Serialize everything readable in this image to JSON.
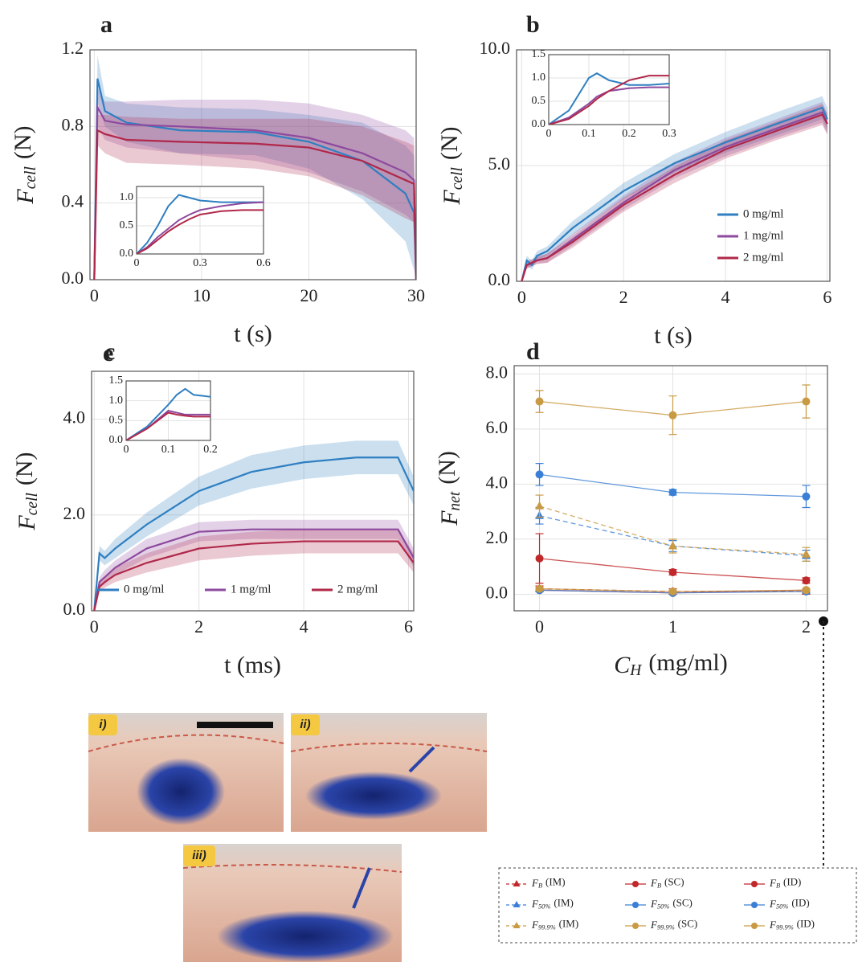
{
  "chart_data": [
    {
      "type": "line",
      "title": "a",
      "xlabel": "t (s)",
      "ylabel": {
        "symbol": "F",
        "subscript": "cell",
        "unit": "(N)"
      },
      "x": [
        0,
        0.3,
        1,
        3,
        8,
        15,
        20,
        25,
        29,
        29.8,
        30
      ],
      "xlim": [
        -0.4,
        30
      ],
      "ylim": [
        0,
        1.2
      ],
      "xticks": [
        0,
        10,
        20,
        30
      ],
      "yticks": [
        {
          "value": 0,
          "label": "0.0"
        },
        0.4,
        0.8,
        1.2
      ],
      "grid": true,
      "series": [
        {
          "color": "#2f7fc1",
          "values": [
            0,
            1.05,
            0.88,
            0.82,
            0.78,
            0.77,
            0.72,
            0.62,
            0.45,
            0.35,
            0
          ],
          "band": [
            0,
            0.12,
            0.08,
            0.1,
            0.12,
            0.12,
            0.14,
            0.2,
            0.25,
            0.3,
            0
          ]
        },
        {
          "color": "#8e4a9e",
          "values": [
            0,
            0.9,
            0.83,
            0.81,
            0.8,
            0.78,
            0.74,
            0.66,
            0.56,
            0.52,
            0
          ],
          "band": [
            0,
            0.1,
            0.1,
            0.12,
            0.14,
            0.16,
            0.18,
            0.2,
            0.22,
            0.22,
            0
          ]
        },
        {
          "color": "#b0284a",
          "values": [
            0,
            0.78,
            0.76,
            0.73,
            0.72,
            0.71,
            0.69,
            0.62,
            0.52,
            0.5,
            0
          ],
          "band": [
            0,
            0.08,
            0.1,
            0.12,
            0.12,
            0.13,
            0.15,
            0.18,
            0.2,
            0.2,
            0
          ]
        }
      ],
      "inset": {
        "x": [
          0,
          0.05,
          0.1,
          0.15,
          0.2,
          0.25,
          0.3,
          0.4,
          0.5,
          0.6
        ],
        "xlim": [
          0,
          0.6
        ],
        "ylim": [
          0,
          1.2
        ],
        "xticks": [
          0,
          0.3,
          0.6
        ],
        "yticks": [
          {
            "value": 0,
            "label": "0.0"
          },
          0.5,
          {
            "value": 1,
            "label": "1.0"
          }
        ],
        "series": [
          {
            "color": "#2f7fc1",
            "values": [
              0,
              0.2,
              0.5,
              0.85,
              1.05,
              1.0,
              0.95,
              0.92,
              0.92,
              0.92
            ]
          },
          {
            "color": "#8e4a9e",
            "values": [
              0,
              0.12,
              0.3,
              0.45,
              0.6,
              0.7,
              0.78,
              0.85,
              0.9,
              0.92
            ]
          },
          {
            "color": "#b0284a",
            "values": [
              0,
              0.1,
              0.25,
              0.4,
              0.52,
              0.62,
              0.7,
              0.76,
              0.78,
              0.78
            ]
          }
        ]
      }
    },
    {
      "type": "line",
      "title": "b",
      "xlabel": "t (s)",
      "ylabel": {
        "symbol": "F",
        "subscript": "cell",
        "unit": "(N)"
      },
      "x": [
        0,
        0.1,
        0.2,
        0.3,
        0.5,
        1,
        2,
        3,
        4,
        5,
        5.9,
        6
      ],
      "xlim": [
        -0.1,
        6.05
      ],
      "ylim": [
        0,
        10
      ],
      "xticks": [
        0,
        2,
        4,
        6
      ],
      "yticks": [
        {
          "value": 0,
          "label": "0.0"
        },
        {
          "value": 5,
          "label": "5.0"
        },
        {
          "value": 10,
          "label": "10.0"
        }
      ],
      "grid": true,
      "legend": "center right",
      "series": [
        {
          "name": "0 mg/ml",
          "color": "#2f7fc1",
          "values": [
            0,
            0.9,
            0.7,
            1.1,
            1.3,
            2.3,
            3.9,
            5.1,
            6.0,
            6.8,
            7.5,
            7.0
          ],
          "band": [
            0,
            0.2,
            0.2,
            0.2,
            0.2,
            0.3,
            0.35,
            0.4,
            0.45,
            0.5,
            0.5,
            0.5
          ]
        },
        {
          "name": "1 mg/ml",
          "color": "#8e4a9e",
          "values": [
            0,
            0.7,
            0.8,
            0.9,
            1.0,
            1.8,
            3.4,
            4.8,
            5.8,
            6.6,
            7.3,
            6.8
          ],
          "band": [
            0,
            0.15,
            0.15,
            0.15,
            0.2,
            0.25,
            0.3,
            0.35,
            0.4,
            0.4,
            0.45,
            0.45
          ]
        },
        {
          "name": "2 mg/ml",
          "color": "#b0284a",
          "values": [
            0,
            0.7,
            0.8,
            0.9,
            1.0,
            1.7,
            3.3,
            4.6,
            5.7,
            6.5,
            7.2,
            6.8
          ],
          "band": [
            0,
            0.15,
            0.15,
            0.15,
            0.2,
            0.25,
            0.3,
            0.35,
            0.4,
            0.4,
            0.45,
            0.45
          ]
        }
      ],
      "inset": {
        "x": [
          0,
          0.05,
          0.1,
          0.12,
          0.15,
          0.2,
          0.25,
          0.3
        ],
        "xlim": [
          0,
          0.3
        ],
        "ylim": [
          0,
          1.5
        ],
        "xticks": [
          0,
          0.1,
          0.2,
          0.3
        ],
        "yticks": [
          {
            "value": 0,
            "label": "0.0"
          },
          0.5,
          {
            "value": 1,
            "label": "1.0"
          },
          1.5
        ],
        "series": [
          {
            "color": "#2f7fc1",
            "values": [
              0,
              0.3,
              1.0,
              1.1,
              0.95,
              0.85,
              0.85,
              0.88
            ]
          },
          {
            "color": "#8e4a9e",
            "values": [
              0,
              0.15,
              0.45,
              0.6,
              0.72,
              0.78,
              0.8,
              0.8
            ]
          },
          {
            "color": "#b0284a",
            "values": [
              0,
              0.12,
              0.4,
              0.55,
              0.72,
              0.95,
              1.05,
              1.05
            ]
          }
        ]
      }
    },
    {
      "type": "line",
      "title": "c",
      "xlabel": "t (ms)",
      "ylabel": {
        "symbol": "F",
        "subscript": "cell",
        "unit": "(N)"
      },
      "x": [
        0,
        0.1,
        0.2,
        0.4,
        1,
        2,
        3,
        4,
        5,
        5.8,
        6.1
      ],
      "xlim": [
        -0.05,
        6.1
      ],
      "ylim": [
        0,
        5
      ],
      "xticks": [
        0,
        2,
        4,
        6
      ],
      "yticks": [
        {
          "value": 0,
          "label": "0.0"
        },
        {
          "value": 2,
          "label": "2.0"
        },
        {
          "value": 4,
          "label": "4.0"
        }
      ],
      "grid": true,
      "legend": "lower center",
      "series": [
        {
          "name": "0 mg/ml",
          "color": "#2f7fc1",
          "values": [
            0,
            1.2,
            1.1,
            1.3,
            1.8,
            2.5,
            2.9,
            3.1,
            3.2,
            3.2,
            2.5
          ],
          "band": [
            0,
            0.15,
            0.15,
            0.2,
            0.25,
            0.3,
            0.35,
            0.35,
            0.35,
            0.35,
            0.3
          ]
        },
        {
          "name": "1 mg/ml",
          "color": "#8e4a9e",
          "values": [
            0,
            0.6,
            0.7,
            0.9,
            1.3,
            1.65,
            1.7,
            1.7,
            1.7,
            1.7,
            1.1
          ],
          "band": [
            0,
            0.1,
            0.15,
            0.15,
            0.2,
            0.2,
            0.2,
            0.2,
            0.2,
            0.2,
            0.2
          ]
        },
        {
          "name": "2 mg/ml",
          "color": "#b0284a",
          "values": [
            0,
            0.5,
            0.6,
            0.75,
            1.0,
            1.3,
            1.4,
            1.45,
            1.45,
            1.45,
            1.0
          ],
          "band": [
            0,
            0.1,
            0.12,
            0.15,
            0.2,
            0.25,
            0.25,
            0.25,
            0.25,
            0.25,
            0.2
          ]
        }
      ],
      "inset": {
        "x": [
          0,
          0.05,
          0.1,
          0.12,
          0.14,
          0.16,
          0.2
        ],
        "xlim": [
          0,
          0.2
        ],
        "ylim": [
          0,
          1.5
        ],
        "xticks": [
          0,
          0.1,
          0.2
        ],
        "yticks": [
          {
            "value": 0,
            "label": "0.0"
          },
          0.5,
          {
            "value": 1,
            "label": "1.0"
          },
          1.5
        ],
        "series": [
          {
            "color": "#2f7fc1",
            "values": [
              0,
              0.35,
              0.9,
              1.15,
              1.3,
              1.15,
              1.1
            ]
          },
          {
            "color": "#8e4a9e",
            "values": [
              0,
              0.3,
              0.75,
              0.7,
              0.65,
              0.65,
              0.65
            ]
          },
          {
            "color": "#b0284a",
            "values": [
              0,
              0.3,
              0.7,
              0.65,
              0.62,
              0.6,
              0.6
            ]
          }
        ]
      }
    },
    {
      "type": "errorbar",
      "title": "d",
      "xlabel": {
        "symbol": "C",
        "subscript": "H",
        "unit": "(mg/ml)"
      },
      "ylabel": {
        "symbol": "F",
        "subscript": "net",
        "unit": "(N)"
      },
      "x": [
        0,
        1,
        2
      ],
      "xlim": [
        -0.19,
        2.16
      ],
      "ylim": [
        -0.6,
        8.3
      ],
      "xticks": [
        0,
        1,
        2
      ],
      "yticks": [
        {
          "value": 0,
          "label": "0.0"
        },
        {
          "value": 2,
          "label": "2.0"
        },
        {
          "value": 4,
          "label": "4.0"
        },
        {
          "value": 6,
          "label": "6.0"
        },
        {
          "value": 8,
          "label": "8.0"
        }
      ],
      "grid": true,
      "legend": "below",
      "series": [
        {
          "symbol": "F",
          "subscript": "B",
          "name": "(IM)",
          "color": "#c0282b",
          "marker": "triangle",
          "linestyle": "dashed",
          "values": [
            0.2,
            0.1,
            0.1
          ],
          "errors": [
            0.1,
            0.1,
            0.1
          ]
        },
        {
          "symbol": "F",
          "subscript": "50%",
          "name": "(IM)",
          "color": "#3a7fd5",
          "marker": "triangle",
          "linestyle": "dashed",
          "values": [
            2.85,
            1.75,
            1.4
          ],
          "errors": [
            0.3,
            0.2,
            0.2
          ]
        },
        {
          "symbol": "F",
          "subscript": "99.9%",
          "name": "(IM)",
          "color": "#c99a44",
          "marker": "triangle",
          "linestyle": "dashed",
          "values": [
            3.2,
            1.75,
            1.45
          ],
          "errors": [
            0.4,
            0.25,
            0.25
          ]
        },
        {
          "symbol": "F",
          "subscript": "B",
          "name": "(SC)",
          "color": "#c0282b",
          "marker": "circle",
          "linestyle": "solid",
          "values": [
            1.3,
            0.8,
            0.5
          ],
          "errors": [
            0.9,
            0.1,
            0.1
          ]
        },
        {
          "symbol": "F",
          "subscript": "50%",
          "name": "(SC)",
          "color": "#3a7fd5",
          "marker": "circle",
          "linestyle": "solid",
          "values": [
            4.35,
            3.7,
            3.55
          ],
          "errors": [
            0.4,
            0.1,
            0.4
          ]
        },
        {
          "symbol": "F",
          "subscript": "99.9%",
          "name": "(SC)",
          "color": "#c99a44",
          "marker": "circle",
          "linestyle": "solid",
          "values": [
            7.0,
            6.5,
            7.0
          ],
          "errors": [
            0.4,
            0.7,
            0.6
          ]
        },
        {
          "symbol": "F",
          "subscript": "B",
          "name": "(ID)",
          "color": "#c0282b",
          "marker": "circle",
          "linestyle": "solid",
          "values": [
            0.15,
            0.05,
            0.15
          ],
          "errors": [
            0.05,
            0.05,
            0.05
          ]
        },
        {
          "symbol": "F",
          "subscript": "50%",
          "name": "(ID)",
          "color": "#3a7fd5",
          "marker": "circle",
          "linestyle": "solid",
          "values": [
            0.15,
            0.05,
            0.1
          ],
          "errors": [
            0.05,
            0.05,
            0.05
          ]
        },
        {
          "symbol": "F",
          "subscript": "99.9%",
          "name": "(ID)",
          "color": "#c99a44",
          "marker": "circle",
          "linestyle": "solid",
          "values": [
            0.2,
            0.1,
            0.15
          ],
          "errors": [
            0.05,
            0.05,
            0.05
          ]
        }
      ]
    }
  ],
  "photos": {
    "title": "e",
    "labels": [
      "i)",
      "ii)",
      "iii)"
    ]
  }
}
